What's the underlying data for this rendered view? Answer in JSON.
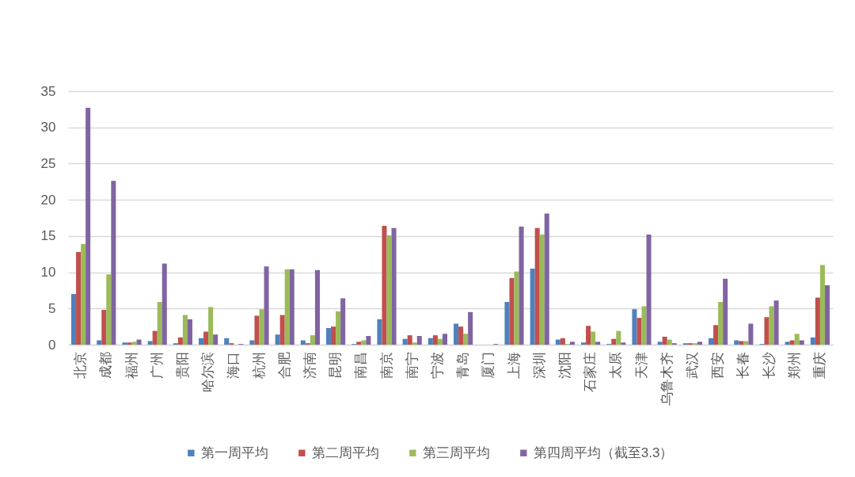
{
  "chart_data": {
    "type": "bar",
    "categories": [
      "北京",
      "成都",
      "福州",
      "广州",
      "贵阳",
      "哈尔滨",
      "海口",
      "杭州",
      "合肥",
      "济南",
      "昆明",
      "南昌",
      "南京",
      "南宁",
      "宁波",
      "青岛",
      "厦门",
      "上海",
      "深圳",
      "沈阳",
      "石家庄",
      "太原",
      "天津",
      "乌鲁木齐",
      "武汉",
      "西安",
      "长春",
      "长沙",
      "郑州",
      "重庆"
    ],
    "series": [
      {
        "name": "第一周平均",
        "color": "#4f81bd",
        "values": [
          7.0,
          0.6,
          0.3,
          0.5,
          0.2,
          0.9,
          0.9,
          0.6,
          1.4,
          0.6,
          2.3,
          0.1,
          3.5,
          0.8,
          0.9,
          2.9,
          0,
          5.9,
          10.5,
          0.7,
          0.3,
          0.1,
          4.9,
          0.4,
          0.2,
          0.9,
          0.6,
          0.1,
          0.4,
          1.0
        ]
      },
      {
        "name": "第二周平均",
        "color": "#c0504d",
        "values": [
          12.8,
          4.8,
          0.3,
          1.9,
          1.0,
          1.8,
          0.2,
          4.0,
          4.1,
          0.2,
          2.5,
          0.4,
          16.4,
          1.3,
          1.3,
          2.5,
          0,
          9.2,
          16.1,
          0.9,
          2.6,
          0.8,
          3.7,
          1.1,
          0.2,
          2.7,
          0.5,
          3.8,
          0.6,
          6.5
        ]
      },
      {
        "name": "第三周平均",
        "color": "#9bbb59",
        "values": [
          13.9,
          9.7,
          0.4,
          5.9,
          4.1,
          5.2,
          0,
          4.9,
          10.4,
          1.3,
          4.6,
          0.6,
          15.1,
          0.3,
          0.8,
          1.5,
          0,
          10.1,
          15.2,
          0.1,
          1.8,
          1.9,
          5.3,
          0.7,
          0.2,
          5.9,
          0.5,
          5.3,
          1.5,
          11.0
        ]
      },
      {
        "name": "第四周平均（截至3.3）",
        "color": "#8064a2",
        "values": [
          32.7,
          22.6,
          0.7,
          11.2,
          3.5,
          1.4,
          0.1,
          10.8,
          10.4,
          10.3,
          6.4,
          1.2,
          16.1,
          1.2,
          1.5,
          4.5,
          0.1,
          16.3,
          18.1,
          0.4,
          0.4,
          0.3,
          15.2,
          0.2,
          0.4,
          9.1,
          2.9,
          6.1,
          0.6,
          8.2
        ]
      }
    ],
    "ylim": [
      0,
      35
    ],
    "yticks": [
      0,
      5,
      10,
      15,
      20,
      25,
      30,
      35
    ],
    "grid": "y",
    "legend": "bottom"
  }
}
